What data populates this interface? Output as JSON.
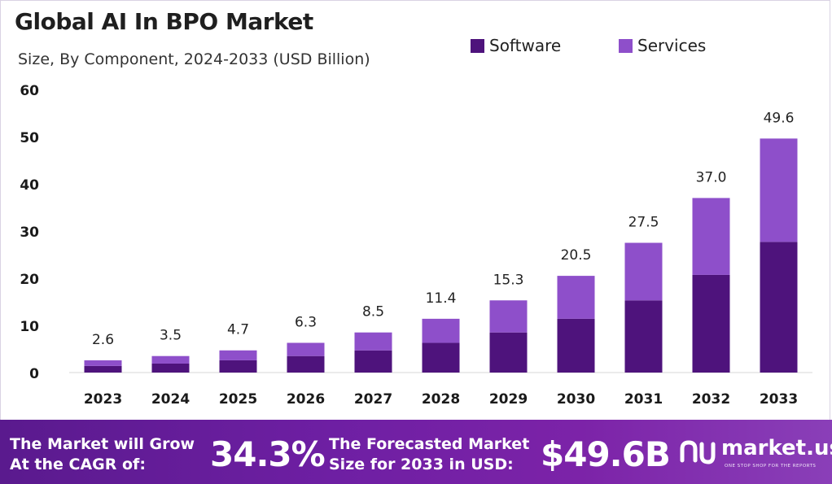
{
  "chart_data": {
    "type": "bar",
    "stacked": true,
    "title": "Global AI In BPO Market",
    "subtitle": "Size, By Component, 2024-2033 (USD Billion)",
    "categories": [
      "2023",
      "2024",
      "2025",
      "2026",
      "2027",
      "2028",
      "2029",
      "2030",
      "2031",
      "2032",
      "2033"
    ],
    "series": [
      {
        "name": "Software",
        "color": "#4e137c",
        "values": [
          1.4,
          1.9,
          2.6,
          3.5,
          4.7,
          6.3,
          8.5,
          11.4,
          15.3,
          20.7,
          27.7
        ]
      },
      {
        "name": "Services",
        "color": "#8e4fca",
        "values": [
          1.2,
          1.6,
          2.1,
          2.8,
          3.8,
          5.1,
          6.8,
          9.1,
          12.2,
          16.3,
          21.9
        ]
      }
    ],
    "totals": [
      2.6,
      3.5,
      4.7,
      6.3,
      8.5,
      11.4,
      15.3,
      20.5,
      27.5,
      37.0,
      49.6
    ],
    "total_labels": [
      "2.6",
      "3.5",
      "4.7",
      "6.3",
      "8.5",
      "11.4",
      "15.3",
      "20.5",
      "27.5",
      "37.0",
      "49.6"
    ],
    "ylim": [
      0,
      60
    ],
    "yticks": [
      0,
      10,
      20,
      30,
      40,
      50,
      60
    ],
    "legend_position": "top-right",
    "grid": false
  },
  "banner": {
    "grow_line1": "The Market will Grow",
    "grow_line2": "At the CAGR of:",
    "cagr": "34.3%",
    "forecast_line1": "The Forecasted Market",
    "forecast_line2": "Size for 2033 in USD:",
    "forecast_value": "$49.6B",
    "logo_text": "market.us",
    "logo_tagline": "ONE STOP SHOP FOR THE REPORTS"
  }
}
